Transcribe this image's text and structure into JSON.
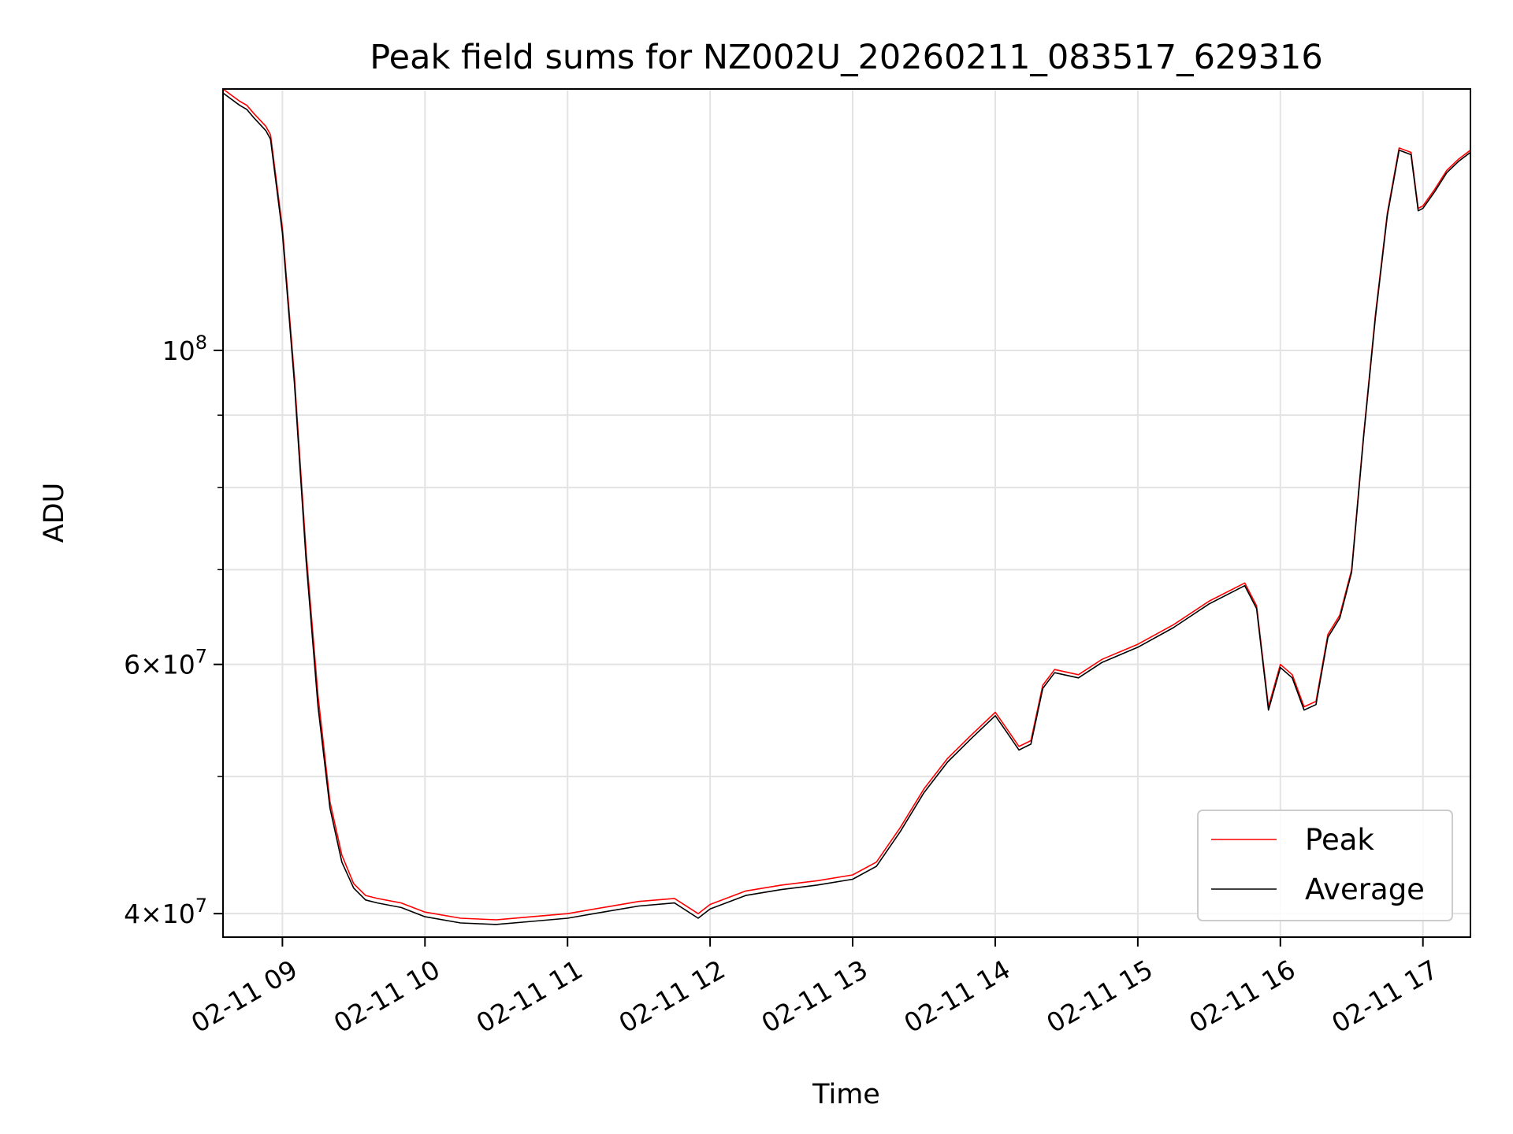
{
  "chart_data": {
    "type": "line",
    "title": "Peak field sums for NZ002U_20260211_083517_629316",
    "xlabel": "Time",
    "ylabel": "ADU",
    "y_scale": "log",
    "ylim": [
      38500000,
      153000000
    ],
    "xlim": [
      "2026-02-11 08:35",
      "2026-02-11 17:20"
    ],
    "x_ticks": [
      "2026-02-11 09:00",
      "2026-02-11 10:00",
      "2026-02-11 11:00",
      "2026-02-11 12:00",
      "2026-02-11 13:00",
      "2026-02-11 14:00",
      "2026-02-11 15:00",
      "2026-02-11 16:00",
      "2026-02-11 17:00"
    ],
    "x_tick_labels": [
      "02-11 09",
      "02-11 10",
      "02-11 11",
      "02-11 12",
      "02-11 13",
      "02-11 14",
      "02-11 15",
      "02-11 16",
      "02-11 17"
    ],
    "y_major_ticks": [
      {
        "value": 40000000,
        "mantissa": "4",
        "exponent": "7"
      },
      {
        "value": 60000000,
        "mantissa": "6",
        "exponent": "7"
      },
      {
        "value": 100000000,
        "mantissa": "",
        "exponent": "8"
      }
    ],
    "y_minor_gridlines": [
      50000000,
      70000000,
      80000000,
      90000000
    ],
    "grid": true,
    "legend_position": "lower-right",
    "x": [
      "2026-02-11 08:35",
      "2026-02-11 08:42",
      "2026-02-11 08:45",
      "2026-02-11 08:48",
      "2026-02-11 08:53",
      "2026-02-11 08:55",
      "2026-02-11 09:00",
      "2026-02-11 09:05",
      "2026-02-11 09:10",
      "2026-02-11 09:15",
      "2026-02-11 09:20",
      "2026-02-11 09:25",
      "2026-02-11 09:30",
      "2026-02-11 09:35",
      "2026-02-11 09:40",
      "2026-02-11 09:50",
      "2026-02-11 10:00",
      "2026-02-11 10:15",
      "2026-02-11 10:30",
      "2026-02-11 10:45",
      "2026-02-11 11:00",
      "2026-02-11 11:15",
      "2026-02-11 11:30",
      "2026-02-11 11:45",
      "2026-02-11 11:55",
      "2026-02-11 12:00",
      "2026-02-11 12:15",
      "2026-02-11 12:30",
      "2026-02-11 12:45",
      "2026-02-11 13:00",
      "2026-02-11 13:10",
      "2026-02-11 13:20",
      "2026-02-11 13:30",
      "2026-02-11 13:40",
      "2026-02-11 13:50",
      "2026-02-11 14:00",
      "2026-02-11 14:05",
      "2026-02-11 14:10",
      "2026-02-11 14:15",
      "2026-02-11 14:20",
      "2026-02-11 14:25",
      "2026-02-11 14:35",
      "2026-02-11 14:45",
      "2026-02-11 15:00",
      "2026-02-11 15:15",
      "2026-02-11 15:30",
      "2026-02-11 15:45",
      "2026-02-11 15:50",
      "2026-02-11 15:55",
      "2026-02-11 16:00",
      "2026-02-11 16:05",
      "2026-02-11 16:10",
      "2026-02-11 16:15",
      "2026-02-11 16:20",
      "2026-02-11 16:25",
      "2026-02-11 16:30",
      "2026-02-11 16:35",
      "2026-02-11 16:40",
      "2026-02-11 16:45",
      "2026-02-11 16:50",
      "2026-02-11 16:55",
      "2026-02-11 16:58",
      "2026-02-11 17:00",
      "2026-02-11 17:05",
      "2026-02-11 17:10",
      "2026-02-11 17:15",
      "2026-02-11 17:20"
    ],
    "series": [
      {
        "name": "Peak",
        "color": "#ff0000",
        "values": [
          153000000,
          150000000,
          149000000,
          147000000,
          144000000,
          142000000,
          122000000,
          96000000,
          72000000,
          57000000,
          48000000,
          44000000,
          42000000,
          41200000,
          41000000,
          40700000,
          40100000,
          39700000,
          39600000,
          39800000,
          40000000,
          40400000,
          40800000,
          41000000,
          40000000,
          40600000,
          41500000,
          41900000,
          42200000,
          42600000,
          43500000,
          46000000,
          49000000,
          51500000,
          53500000,
          55500000,
          54000000,
          52500000,
          53000000,
          58000000,
          59500000,
          59000000,
          60500000,
          62000000,
          64000000,
          66500000,
          68500000,
          66000000,
          56000000,
          60000000,
          59000000,
          56000000,
          56500000,
          63000000,
          65000000,
          70000000,
          87000000,
          106000000,
          125000000,
          139000000,
          138000000,
          126000000,
          126500000,
          130000000,
          134000000,
          136500000,
          138500000
        ]
      },
      {
        "name": "Average",
        "color": "#000000",
        "values": [
          152000000,
          149000000,
          148000000,
          146000000,
          143000000,
          141000000,
          121000000,
          95000000,
          71000000,
          56000000,
          47500000,
          43500000,
          41700000,
          40900000,
          40700000,
          40400000,
          39800000,
          39400000,
          39300000,
          39500000,
          39700000,
          40100000,
          40500000,
          40700000,
          39700000,
          40300000,
          41200000,
          41600000,
          41900000,
          42300000,
          43200000,
          45700000,
          48700000,
          51200000,
          53200000,
          55200000,
          53700000,
          52200000,
          52700000,
          57700000,
          59200000,
          58700000,
          60200000,
          61700000,
          63700000,
          66200000,
          68200000,
          65700000,
          55700000,
          59700000,
          58700000,
          55700000,
          56200000,
          62700000,
          64700000,
          69700000,
          86700000,
          105500000,
          124500000,
          138500000,
          137500000,
          125500000,
          126000000,
          129500000,
          133500000,
          136000000,
          138000000
        ]
      }
    ]
  }
}
